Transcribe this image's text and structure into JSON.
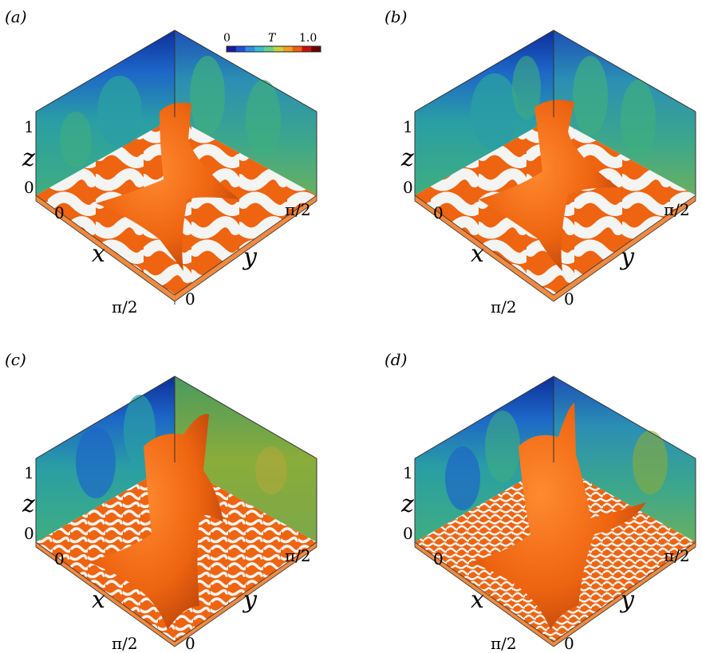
{
  "colorbar": {
    "min_label": "0",
    "variable": "T",
    "max_label": "1.0",
    "colors": [
      "#1a1aa0",
      "#2050d8",
      "#2f8fe0",
      "#35c0d0",
      "#6bd08a",
      "#c8d040",
      "#f0a020",
      "#f06010",
      "#c81010",
      "#6a0000"
    ]
  },
  "panels": [
    {
      "label": "(a)",
      "z_top": "1",
      "z_label": "z",
      "z_zero": "0",
      "x_zero": "0",
      "x_label": "x",
      "x_max": "π/2",
      "y_zero": "0",
      "y_label": "y",
      "y_max": "π/2"
    },
    {
      "label": "(b)",
      "z_top": "1",
      "z_label": "z",
      "z_zero": "0",
      "x_zero": "0",
      "x_label": "x",
      "x_max": "π/2",
      "y_zero": "0",
      "y_label": "y",
      "y_max": "π/2"
    },
    {
      "label": "(c)",
      "z_top": "1",
      "z_label": "z",
      "z_zero": "0",
      "x_zero": "0",
      "x_label": "x",
      "x_max": "π/2",
      "y_zero": "0",
      "y_label": "y",
      "y_max": "π/2"
    },
    {
      "label": "(d)",
      "z_top": "1",
      "z_label": "z",
      "z_zero": "0",
      "x_zero": "0",
      "x_label": "x",
      "x_max": "π/2",
      "y_zero": "0",
      "y_label": "y",
      "y_max": "π/2"
    }
  ],
  "palette": {
    "plume": "#ee6410",
    "plume_dark": "#b8430a",
    "floor_stripe": "#f4f4f2",
    "wall_deep": "#0c2f9a",
    "wall_mid": "#1d66c8",
    "wall_teal": "#2a9ea4",
    "wall_green": "#62b06a",
    "wall_olive": "#9ab23a"
  }
}
